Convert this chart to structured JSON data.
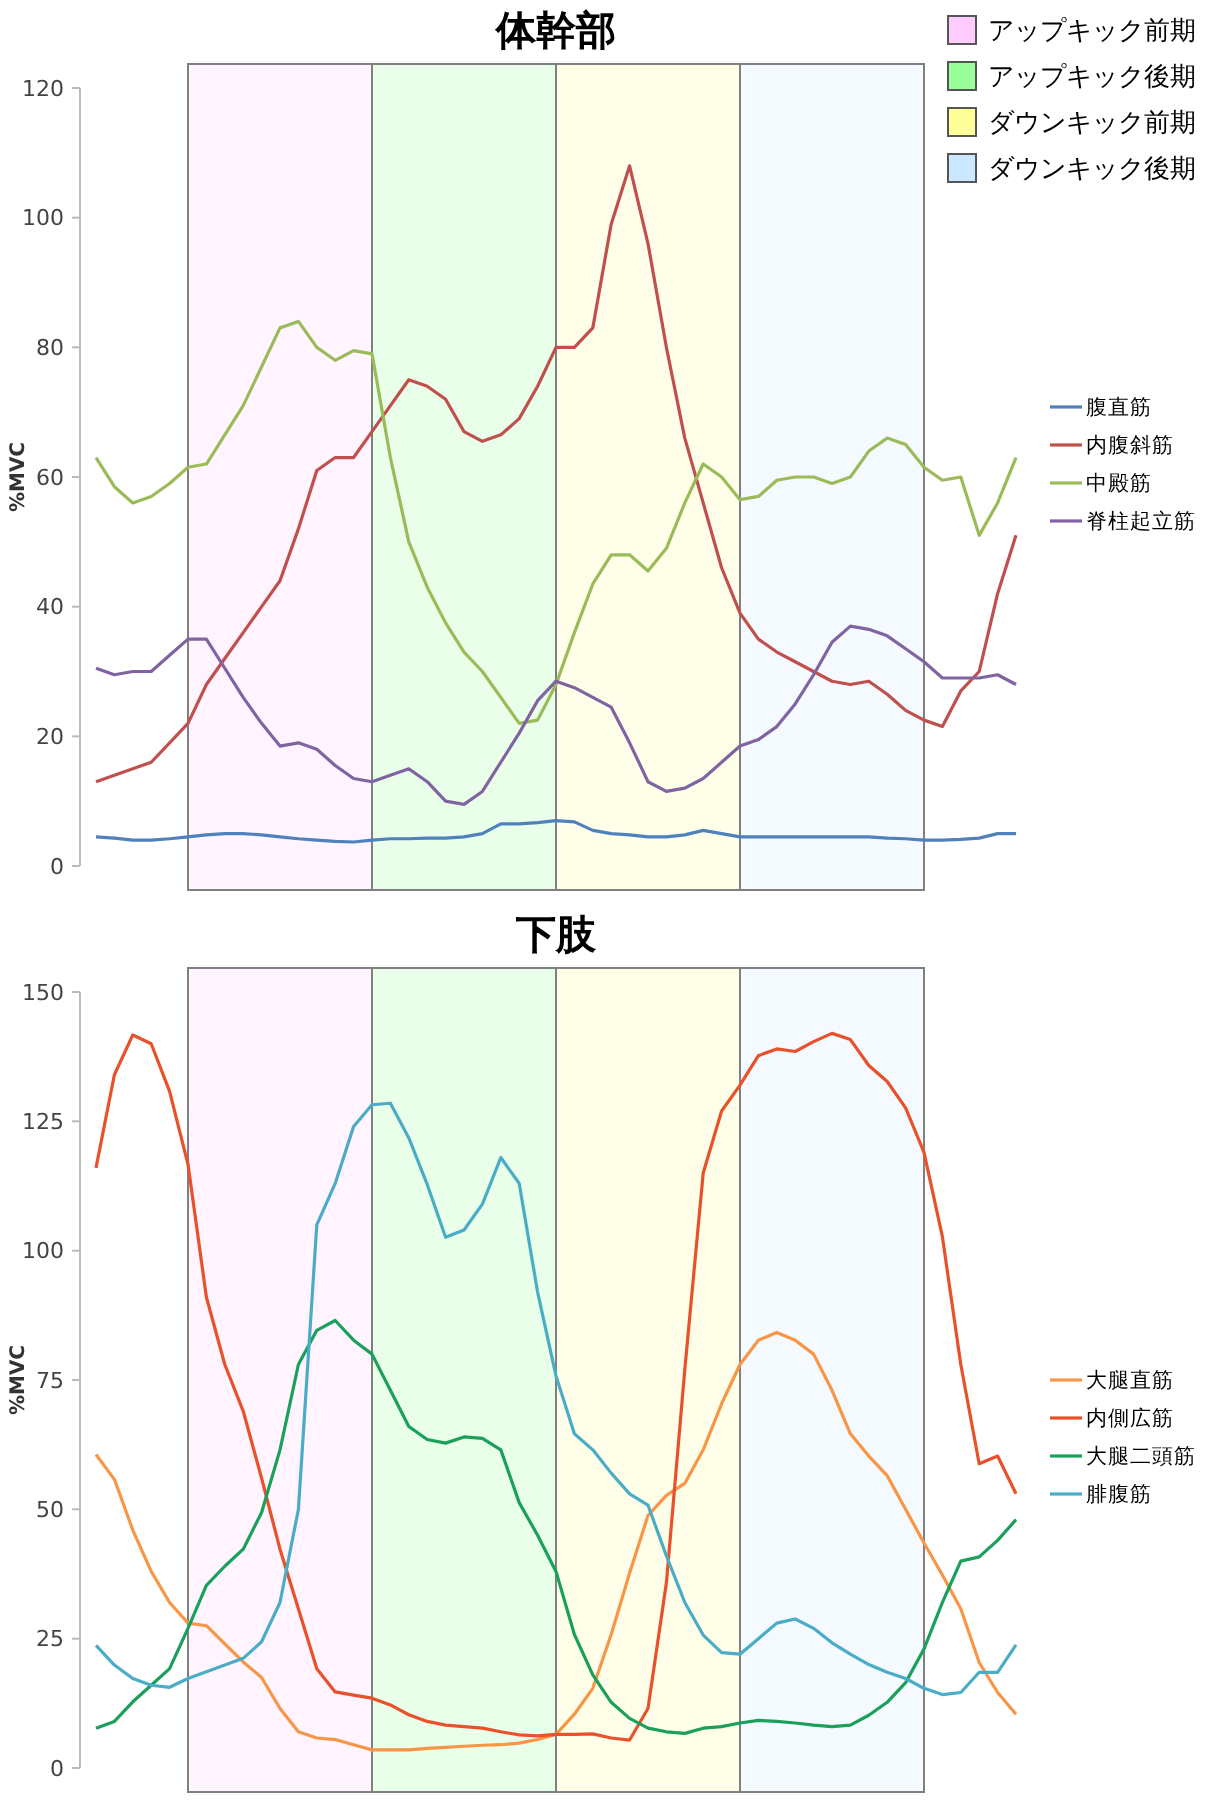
{
  "chart_data": [
    {
      "type": "line",
      "title": "体幹部",
      "ylabel": "%MVC",
      "categories": [
        null,
        null,
        null,
        null,
        null,
        null,
        null,
        null,
        null,
        null,
        null,
        null,
        null,
        null,
        null,
        null,
        null,
        null,
        null,
        null,
        null,
        null,
        null,
        null,
        null,
        null,
        null,
        null,
        null,
        null,
        null,
        null,
        null,
        null,
        null,
        null,
        null,
        null,
        null,
        null,
        null,
        null,
        null,
        null,
        null,
        null,
        null,
        null,
        null,
        null,
        null
      ],
      "ylim": [
        0,
        120
      ],
      "yticks": [
        0,
        20,
        40,
        60,
        80,
        100,
        120
      ],
      "grid": false,
      "legend": "right",
      "marker": "none",
      "line_style": "solid",
      "annotations": [
        "アップキック前期",
        "アップキック後期",
        "ダウンキック前期",
        "ダウンキック後期"
      ],
      "series": [
        {
          "name": "腹直筋",
          "color": "#4f81bd",
          "values": [
            4.5,
            4.3,
            4,
            4,
            4.2,
            4.5,
            4.8,
            5,
            5,
            4.8,
            4.5,
            4.2,
            4,
            3.8,
            3.7,
            4,
            4.2,
            4.2,
            4.3,
            4.3,
            4.5,
            5,
            6.5,
            6.5,
            6.7,
            7,
            6.8,
            5.5,
            5,
            4.8,
            4.5,
            4.5,
            4.8,
            5.5,
            5,
            4.5,
            4.5,
            4.5,
            4.5,
            4.5,
            4.5,
            4.5,
            4.5,
            4.3,
            4.2,
            4,
            4,
            4.1,
            4.3,
            5,
            5
          ]
        },
        {
          "name": "内腹斜筋",
          "color": "#c0504d",
          "values": [
            13,
            14,
            15,
            16,
            19,
            22,
            28,
            32,
            36,
            40,
            44,
            52,
            61,
            63,
            63,
            67,
            71,
            75,
            74,
            72,
            67,
            65.5,
            66.5,
            69,
            74,
            80,
            80,
            83,
            99,
            108,
            96,
            80,
            66,
            56,
            46,
            39,
            35,
            33,
            31.5,
            30,
            28.5,
            28,
            28.5,
            26.5,
            24,
            22.5,
            21.5,
            27,
            30,
            42,
            51
          ]
        },
        {
          "name": "中殿筋",
          "color": "#9bbb59",
          "values": [
            63,
            58.5,
            56,
            57,
            59,
            61.5,
            62,
            66.5,
            71,
            77,
            83,
            84,
            80,
            78,
            79.5,
            79,
            63,
            50,
            43,
            37.5,
            33,
            30,
            26,
            22,
            22.5,
            28,
            36,
            43.5,
            48,
            48,
            45.5,
            49,
            56,
            62,
            60,
            56.5,
            57,
            59.5,
            60,
            60,
            59,
            60,
            64,
            66,
            65,
            61.5,
            59.5,
            60,
            51,
            56,
            63
          ]
        },
        {
          "name": "脊柱起立筋",
          "color": "#8064a2",
          "values": [
            30.5,
            29.5,
            30,
            30,
            32.5,
            35,
            35,
            30.5,
            26,
            22,
            18.5,
            19,
            18,
            15.5,
            13.5,
            13,
            14,
            15,
            13,
            10,
            9.5,
            11.5,
            16,
            20.5,
            25.5,
            28.5,
            27.5,
            26,
            24.5,
            19,
            13,
            11.5,
            12,
            13.5,
            16,
            18.5,
            19.5,
            21.5,
            25,
            29.5,
            34.5,
            37,
            36.5,
            35.5,
            33.5,
            31.5,
            29,
            29,
            29,
            29.5,
            28
          ]
        }
      ]
    },
    {
      "type": "line",
      "title": "下肢",
      "ylabel": "%MVC",
      "categories": [
        null,
        null,
        null,
        null,
        null,
        null,
        null,
        null,
        null,
        null,
        null,
        null,
        null,
        null,
        null,
        null,
        null,
        null,
        null,
        null,
        null,
        null,
        null,
        null,
        null,
        null,
        null,
        null,
        null,
        null,
        null,
        null,
        null,
        null,
        null,
        null,
        null,
        null,
        null,
        null,
        null,
        null,
        null,
        null,
        null,
        null,
        null,
        null,
        null,
        null,
        null
      ],
      "ylim": [
        0,
        150
      ],
      "yticks": [
        0,
        25,
        50,
        75,
        100,
        125,
        150
      ],
      "grid": false,
      "legend": "right",
      "marker": "none",
      "line_style": "solid",
      "series": [
        {
          "name": "大腿直筋",
          "color": "#f79646",
          "values": [
            60.6,
            55.8,
            46,
            38,
            32,
            28,
            27.5,
            24,
            20.5,
            17.5,
            11.5,
            7,
            5.8,
            5.5,
            4.5,
            3.5,
            3.5,
            3.5,
            3.8,
            4,
            4.2,
            4.4,
            4.5,
            4.8,
            5.5,
            6.5,
            10.4,
            15.4,
            25.8,
            37.7,
            48.8,
            52.7,
            55,
            61.5,
            70.4,
            78,
            82.7,
            84.2,
            82.7,
            80,
            73,
            64.6,
            60.3,
            56.5,
            50,
            43.5,
            37.3,
            30.8,
            20.4,
            14.6,
            10.4
          ]
        },
        {
          "name": "内側広筋",
          "color": "#e8512a",
          "values": [
            116,
            134,
            141.7,
            140,
            130.8,
            116.7,
            91,
            78,
            69,
            56,
            42.3,
            30.8,
            19.2,
            14.7,
            14.1,
            13.5,
            12.2,
            10.3,
            9,
            8.3,
            8,
            7.7,
            7,
            6.4,
            6.2,
            6.5,
            6.5,
            6.6,
            5.8,
            5.4,
            11.5,
            35.8,
            77,
            115,
            127,
            132,
            137.7,
            139,
            138.5,
            140.4,
            142,
            140.8,
            135.8,
            132.7,
            127.6,
            119,
            102.7,
            78,
            58.8,
            60.3,
            53
          ]
        },
        {
          "name": "大腿二頭筋",
          "color": "#1aa05a",
          "values": [
            7.7,
            9,
            12.8,
            16,
            19.2,
            27,
            35.3,
            39,
            42.3,
            49.4,
            61.5,
            78,
            84.6,
            86.5,
            82.7,
            80,
            73,
            66,
            63.5,
            62.8,
            64,
            63.7,
            61.5,
            51.3,
            45,
            38,
            25.8,
            18,
            12.7,
            9.6,
            7.7,
            7,
            6.7,
            7.7,
            8,
            8.7,
            9.2,
            9,
            8.7,
            8.3,
            8,
            8.3,
            10.2,
            12.7,
            16.5,
            23,
            32,
            40,
            40.8,
            44,
            48
          ]
        },
        {
          "name": "腓腹筋",
          "color": "#4bacc6",
          "values": [
            23.7,
            19.9,
            17.3,
            16,
            15.6,
            17.3,
            18.6,
            19.9,
            21.2,
            24.4,
            32,
            50,
            105,
            113,
            124,
            128.2,
            128.5,
            121.8,
            112.8,
            102.6,
            104,
            109,
            118,
            113,
            92,
            75.8,
            64.6,
            61.5,
            57,
            53,
            50.8,
            41,
            32,
            25.7,
            22.3,
            22,
            25,
            28,
            28.8,
            27,
            24.2,
            22,
            20,
            18.5,
            17.3,
            15.4,
            14.2,
            14.6,
            18.5,
            18.5,
            23.8
          ]
        }
      ]
    }
  ]
}
